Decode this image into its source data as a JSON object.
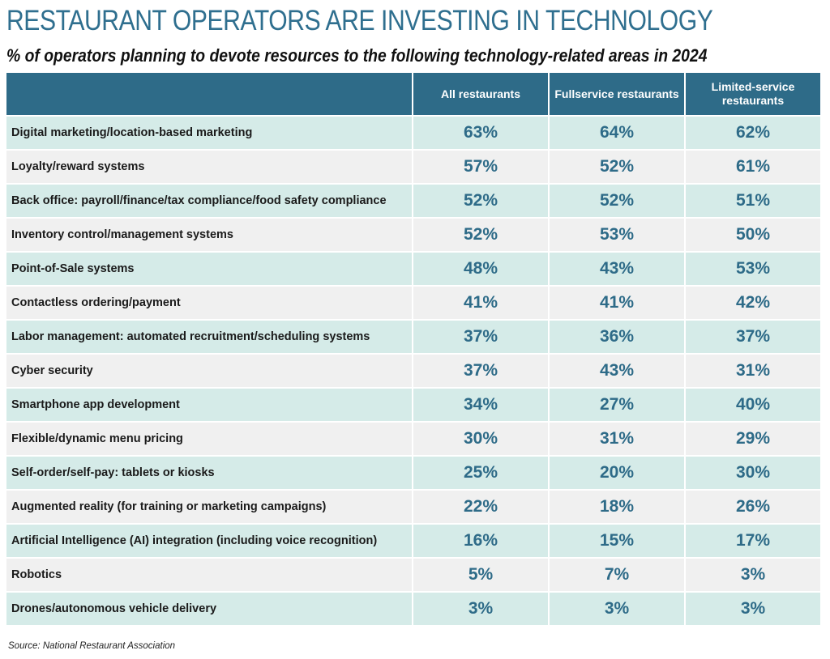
{
  "title": "RESTAURANT OPERATORS ARE INVESTING IN TECHNOLOGY",
  "subtitle": "% of operators planning to devote resources to the following technology-related areas in 2024",
  "source": "Source: National Restaurant Association",
  "colors": {
    "header_bg": "#2e6b88",
    "accent": "#2e6b88",
    "row_alt_a": "#d5ebe8",
    "row_alt_b": "#f0f0f0"
  },
  "chart_data": {
    "type": "table",
    "columns": [
      "All restaurants",
      "Fullservice restaurants",
      "Limited-service restaurants"
    ],
    "rows": [
      {
        "label": "Digital marketing/location-based marketing",
        "values": [
          "63%",
          "64%",
          "62%"
        ]
      },
      {
        "label": "Loyalty/reward systems",
        "values": [
          "57%",
          "52%",
          "61%"
        ]
      },
      {
        "label": "Back office: payroll/finance/tax compliance/food safety compliance",
        "values": [
          "52%",
          "52%",
          "51%"
        ]
      },
      {
        "label": "Inventory control/management systems",
        "values": [
          "52%",
          "53%",
          "50%"
        ]
      },
      {
        "label": "Point-of-Sale systems",
        "values": [
          "48%",
          "43%",
          "53%"
        ]
      },
      {
        "label": "Contactless ordering/payment",
        "values": [
          "41%",
          "41%",
          "42%"
        ]
      },
      {
        "label": "Labor management: automated recruitment/scheduling systems",
        "values": [
          "37%",
          "36%",
          "37%"
        ]
      },
      {
        "label": "Cyber security",
        "values": [
          "37%",
          "43%",
          "31%"
        ]
      },
      {
        "label": "Smartphone app development",
        "values": [
          "34%",
          "27%",
          "40%"
        ]
      },
      {
        "label": "Flexible/dynamic menu pricing",
        "values": [
          "30%",
          "31%",
          "29%"
        ]
      },
      {
        "label": "Self-order/self-pay: tablets or kiosks",
        "values": [
          "25%",
          "20%",
          "30%"
        ]
      },
      {
        "label": "Augmented reality (for training or marketing campaigns)",
        "values": [
          "22%",
          "18%",
          "26%"
        ]
      },
      {
        "label": "Artificial Intelligence (AI) integration (including voice recognition)",
        "values": [
          "16%",
          "15%",
          "17%"
        ]
      },
      {
        "label": "Robotics",
        "values": [
          "5%",
          "7%",
          "3%"
        ]
      },
      {
        "label": "Drones/autonomous vehicle delivery",
        "values": [
          "3%",
          "3%",
          "3%"
        ]
      }
    ]
  }
}
